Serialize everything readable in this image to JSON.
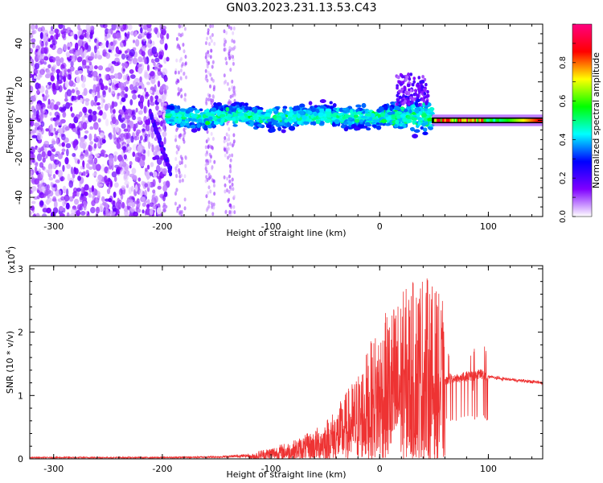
{
  "title": "GN03.2023.231.13.53.C43",
  "chart_data": [
    {
      "type": "heatmap",
      "xlabel": "Height of straight line (km)",
      "ylabel": "Frequency (Hz)",
      "xlim": [
        -322,
        150
      ],
      "ylim": [
        -50,
        50
      ],
      "x_ticks": [
        -300,
        -200,
        -100,
        0,
        100
      ],
      "y_ticks": [
        -40,
        -20,
        0,
        20,
        40
      ],
      "colorbar": {
        "label": "Normalized spectral amplitude",
        "ticks": [
          0.0,
          0.2,
          0.4,
          0.6,
          0.8
        ],
        "range": [
          0,
          1
        ],
        "colors": [
          "#ffffff",
          "#7f00ff",
          "#0000ff",
          "#00ffff",
          "#00ff00",
          "#ffff00",
          "#ff0000",
          "#ff0080"
        ]
      },
      "regions": [
        {
          "x": [
            -322,
            -195
          ],
          "y": [
            -50,
            50
          ],
          "level": 0.15,
          "desc": "sparse"
        },
        {
          "x": [
            -195,
            -130
          ],
          "y": [
            -50,
            50
          ],
          "level": 0.08,
          "desc": "sparse"
        },
        {
          "x": [
            -195,
            48
          ],
          "y": [
            -10,
            10
          ],
          "level": 0.35,
          "desc": "band"
        },
        {
          "x": [
            48,
            150
          ],
          "y": [
            -2,
            2
          ],
          "level": 0.9,
          "desc": "line"
        }
      ]
    },
    {
      "type": "line",
      "xlabel": "Height of straight line (km)",
      "ylabel": "SNR (10 * v/v)",
      "y_multiplier": "(x10",
      "y_multiplier_exp": "4",
      "y_multiplier_close": ")",
      "xlim": [
        -322,
        150
      ],
      "ylim": [
        0,
        3.05
      ],
      "x_ticks": [
        -300,
        -200,
        -100,
        0,
        100
      ],
      "y_ticks": [
        0,
        1,
        2,
        3
      ],
      "color": "#ee3333",
      "series": [
        {
          "x": [
            -322,
            -200,
            -150,
            -120,
            -110,
            -80,
            -60,
            -40,
            -20,
            0,
            20,
            40,
            58,
            60,
            80,
            95,
            100,
            110,
            150
          ],
          "y": [
            0.02,
            0.02,
            0.03,
            0.05,
            0.12,
            0.25,
            0.4,
            0.7,
            1.2,
            1.9,
            2.3,
            2.6,
            2.2,
            1.3,
            1.35,
            1.4,
            1.3,
            1.27,
            1.2
          ]
        }
      ]
    }
  ]
}
